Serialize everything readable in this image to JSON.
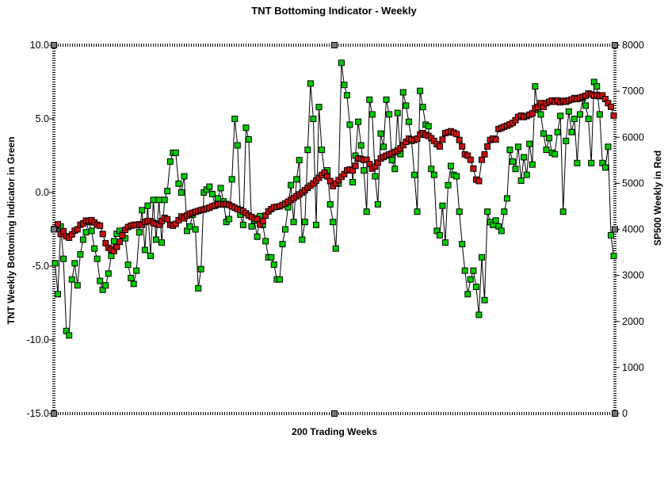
{
  "title": "TNT Bottoming Indicator - Weekly",
  "chart_data": {
    "type": "line",
    "title": "TNT Bottoming Indicator - Weekly",
    "xlabel": "200 Trading Weeks",
    "ylabel_left": "TNT Weekly Bottoming Indicator in Green",
    "ylabel_right": "SP500 Weekly in Red",
    "x_points": 200,
    "grid": false,
    "legend_position": "none",
    "left_axis": {
      "min": -15.0,
      "max": 10.0,
      "ticks": [
        "10.0",
        "5.0",
        "0.0",
        "-5.0",
        "-10.0",
        "-15.0"
      ]
    },
    "right_axis": {
      "min": 0,
      "max": 8000,
      "ticks": [
        "8000",
        "7000",
        "6000",
        "5000",
        "4000",
        "3000",
        "2000",
        "1000",
        "0"
      ]
    },
    "series": [
      {
        "name": "TNT Weekly Bottoming Indicator",
        "axis": "left",
        "color": "#00CC00",
        "marker": "square",
        "values": [
          -4.8,
          -6.9,
          -2.3,
          -4.5,
          -9.4,
          -9.7,
          -5.9,
          -4.8,
          -6.3,
          -4.2,
          -3.2,
          -2.7,
          -2.0,
          -2.6,
          -3.8,
          -4.5,
          -6.0,
          -6.6,
          -6.3,
          -5.5,
          -4.3,
          -3.3,
          -2.8,
          -2.6,
          -2.8,
          -3.1,
          -4.9,
          -5.8,
          -6.2,
          -5.3,
          -2.7,
          -1.2,
          -3.9,
          -0.9,
          -4.3,
          -0.5,
          -3.2,
          -0.5,
          -3.4,
          -0.5,
          0.1,
          2.1,
          2.7,
          2.7,
          0.6,
          0.0,
          1.1,
          -2.6,
          -2.3,
          -1.5,
          -2.5,
          -6.5,
          -5.2,
          0.0,
          0.2,
          0.4,
          -0.1,
          -0.9,
          -0.4,
          0.3,
          -0.6,
          -2.0,
          -1.8,
          0.9,
          5.0,
          3.2,
          -1.5,
          -2.2,
          4.4,
          3.6,
          -2.3,
          -1.9,
          -3.0,
          -1.6,
          -2.2,
          -3.3,
          -4.4,
          -4.4,
          -4.9,
          -5.9,
          -5.9,
          -3.5,
          -2.5,
          -1.0,
          0.5,
          -2.0,
          0.9,
          2.2,
          -3.2,
          -2.0,
          2.9,
          7.4,
          5.0,
          -2.2,
          5.8,
          2.9,
          1.3,
          1.5,
          -0.8,
          -2.0,
          -3.8,
          0.6,
          8.8,
          7.3,
          6.6,
          4.6,
          0.7,
          2.5,
          4.8,
          3.2,
          1.5,
          -1.3,
          6.3,
          5.3,
          1.1,
          -0.8,
          4.0,
          3.1,
          6.3,
          5.3,
          2.2,
          1.6,
          5.4,
          2.6,
          6.8,
          5.9,
          4.8,
          3.5,
          1.2,
          -1.3,
          6.9,
          5.8,
          4.6,
          4.5,
          1.6,
          1.2,
          -2.6,
          -2.9,
          -0.9,
          -3.4,
          0.5,
          1.8,
          1.2,
          1.1,
          -1.3,
          -3.5,
          -5.3,
          -6.9,
          -5.9,
          -5.3,
          -6.4,
          -8.3,
          -4.4,
          -7.3,
          -1.3,
          -2.0,
          -2.2,
          -1.9,
          -2.3,
          -2.6,
          -1.3,
          -0.4,
          2.9,
          2.1,
          1.6,
          3.1,
          0.8,
          2.4,
          1.2,
          3.3,
          1.9,
          7.2,
          5.6,
          5.3,
          4.0,
          2.9,
          3.7,
          2.7,
          2.6,
          4.1,
          5.2,
          -1.3,
          3.5,
          5.5,
          4.1,
          5.0,
          2.0,
          5.3,
          6.4,
          5.9,
          5.0,
          2.0,
          7.5,
          7.2,
          5.3,
          2.0,
          1.7,
          3.1,
          -2.9,
          -4.3
        ]
      },
      {
        "name": "SP500 Weekly",
        "axis": "right",
        "color": "#CC1111",
        "marker": "square",
        "values": [
          4010,
          4110,
          3900,
          3960,
          3850,
          3820,
          3890,
          3970,
          4000,
          4100,
          4130,
          4190,
          4180,
          4200,
          4150,
          4100,
          4080,
          3900,
          3700,
          3600,
          3560,
          3530,
          3620,
          3730,
          3870,
          3990,
          4050,
          4080,
          4100,
          4090,
          4110,
          4100,
          4160,
          4180,
          4180,
          4140,
          4120,
          4100,
          4180,
          4250,
          4220,
          4100,
          4080,
          4120,
          4200,
          4280,
          4240,
          4300,
          4340,
          4360,
          4380,
          4400,
          4420,
          4430,
          4450,
          4470,
          4500,
          4520,
          4540,
          4550,
          4540,
          4550,
          4530,
          4500,
          4470,
          4440,
          4420,
          4390,
          4350,
          4300,
          4270,
          4240,
          4220,
          4110,
          4180,
          4300,
          4390,
          4440,
          4480,
          4490,
          4500,
          4530,
          4560,
          4600,
          4640,
          4680,
          4720,
          4760,
          4800,
          4850,
          4900,
          4950,
          5000,
          5060,
          5120,
          5180,
          5230,
          5150,
          5050,
          4940,
          5000,
          5070,
          5140,
          5200,
          5280,
          5300,
          5280,
          5380,
          5540,
          5530,
          5510,
          5510,
          5420,
          5320,
          5360,
          5450,
          5540,
          5570,
          5600,
          5630,
          5650,
          5680,
          5710,
          5760,
          5830,
          5900,
          5970,
          5950,
          5940,
          5970,
          6060,
          6090,
          6050,
          6030,
          5980,
          5920,
          5850,
          5800,
          5950,
          6090,
          6110,
          6130,
          6100,
          6070,
          5940,
          5800,
          5630,
          5600,
          5510,
          5320,
          5080,
          5050,
          5510,
          5630,
          5800,
          5940,
          5970,
          5950,
          6180,
          6200,
          6230,
          6250,
          6280,
          6310,
          6370,
          6440,
          6470,
          6440,
          6460,
          6490,
          6520,
          6630,
          6660,
          6740,
          6660,
          6740,
          6770,
          6800,
          6770,
          6800,
          6760,
          6790,
          6770,
          6800,
          6820,
          6850,
          6830,
          6860,
          6880,
          6900,
          6950,
          6930,
          6900,
          6920,
          6890,
          6910,
          6830,
          6740,
          6660,
          6470
        ]
      }
    ]
  },
  "colors": {
    "background": "#FFFFFF",
    "text": "#000000",
    "line": "#000000",
    "green_marker": "#00CC00",
    "red_marker": "#CC1111",
    "axis_grip": "#777777"
  }
}
